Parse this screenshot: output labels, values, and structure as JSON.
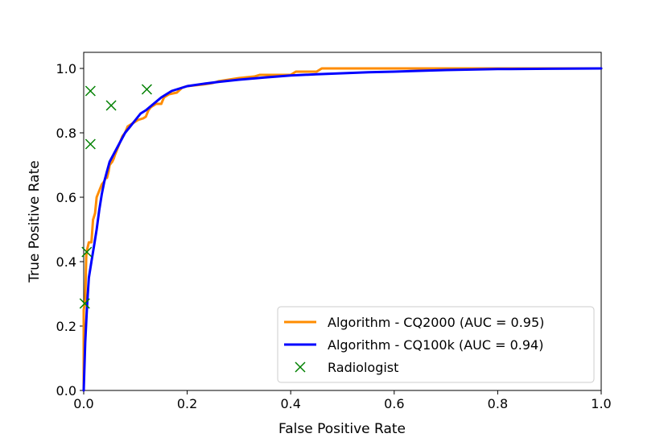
{
  "chart_data": {
    "type": "line",
    "title": "",
    "xlabel": "False Positive Rate",
    "ylabel": "True Positive Rate",
    "xlim": [
      0.0,
      1.0
    ],
    "ylim": [
      0.0,
      1.05
    ],
    "xticks": [
      "0.0",
      "0.2",
      "0.4",
      "0.6",
      "0.8",
      "1.0"
    ],
    "yticks": [
      "0.0",
      "0.2",
      "0.4",
      "0.6",
      "0.8",
      "1.0"
    ],
    "grid": false,
    "legend_position": "lower-right",
    "series": [
      {
        "name": "Algorithm - CQ2000 (AUC = 0.95)",
        "kind": "line",
        "color": "#ff8c00",
        "points": [
          [
            0.0,
            0.0
          ],
          [
            0.0,
            0.25
          ],
          [
            0.003,
            0.28
          ],
          [
            0.005,
            0.42
          ],
          [
            0.007,
            0.44
          ],
          [
            0.01,
            0.46
          ],
          [
            0.015,
            0.46
          ],
          [
            0.018,
            0.53
          ],
          [
            0.022,
            0.55
          ],
          [
            0.025,
            0.6
          ],
          [
            0.03,
            0.62
          ],
          [
            0.035,
            0.64
          ],
          [
            0.04,
            0.65
          ],
          [
            0.042,
            0.66
          ],
          [
            0.045,
            0.66
          ],
          [
            0.048,
            0.68
          ],
          [
            0.05,
            0.7
          ],
          [
            0.055,
            0.71
          ],
          [
            0.058,
            0.72
          ],
          [
            0.06,
            0.73
          ],
          [
            0.065,
            0.75
          ],
          [
            0.07,
            0.77
          ],
          [
            0.075,
            0.79
          ],
          [
            0.08,
            0.8
          ],
          [
            0.085,
            0.82
          ],
          [
            0.095,
            0.83
          ],
          [
            0.105,
            0.84
          ],
          [
            0.115,
            0.845
          ],
          [
            0.12,
            0.85
          ],
          [
            0.125,
            0.87
          ],
          [
            0.13,
            0.88
          ],
          [
            0.14,
            0.89
          ],
          [
            0.15,
            0.89
          ],
          [
            0.155,
            0.91
          ],
          [
            0.165,
            0.92
          ],
          [
            0.18,
            0.925
          ],
          [
            0.19,
            0.94
          ],
          [
            0.2,
            0.945
          ],
          [
            0.23,
            0.95
          ],
          [
            0.25,
            0.955
          ],
          [
            0.26,
            0.96
          ],
          [
            0.3,
            0.97
          ],
          [
            0.33,
            0.975
          ],
          [
            0.34,
            0.98
          ],
          [
            0.4,
            0.98
          ],
          [
            0.41,
            0.99
          ],
          [
            0.45,
            0.99
          ],
          [
            0.46,
            1.0
          ],
          [
            0.6,
            1.0
          ],
          [
            0.8,
            1.0
          ],
          [
            1.0,
            1.0
          ]
        ]
      },
      {
        "name": "Algorithm - CQ100k (AUC = 0.94)",
        "kind": "line",
        "color": "#0000ff",
        "points": [
          [
            0.0,
            0.0
          ],
          [
            0.003,
            0.15
          ],
          [
            0.006,
            0.25
          ],
          [
            0.008,
            0.3
          ],
          [
            0.01,
            0.35
          ],
          [
            0.015,
            0.4
          ],
          [
            0.02,
            0.45
          ],
          [
            0.025,
            0.5
          ],
          [
            0.03,
            0.56
          ],
          [
            0.035,
            0.61
          ],
          [
            0.04,
            0.65
          ],
          [
            0.045,
            0.68
          ],
          [
            0.05,
            0.71
          ],
          [
            0.06,
            0.74
          ],
          [
            0.07,
            0.77
          ],
          [
            0.08,
            0.8
          ],
          [
            0.09,
            0.82
          ],
          [
            0.1,
            0.84
          ],
          [
            0.11,
            0.86
          ],
          [
            0.12,
            0.87
          ],
          [
            0.135,
            0.89
          ],
          [
            0.15,
            0.91
          ],
          [
            0.17,
            0.93
          ],
          [
            0.2,
            0.945
          ],
          [
            0.23,
            0.952
          ],
          [
            0.26,
            0.958
          ],
          [
            0.3,
            0.965
          ],
          [
            0.35,
            0.972
          ],
          [
            0.4,
            0.978
          ],
          [
            0.45,
            0.982
          ],
          [
            0.5,
            0.985
          ],
          [
            0.55,
            0.988
          ],
          [
            0.6,
            0.99
          ],
          [
            0.7,
            0.995
          ],
          [
            0.8,
            0.998
          ],
          [
            0.9,
            0.999
          ],
          [
            1.0,
            1.0
          ]
        ]
      }
    ],
    "scatter": {
      "name": "Radiologist",
      "marker": "x",
      "color": "#008000",
      "points": [
        [
          0.002,
          0.27
        ],
        [
          0.006,
          0.43
        ],
        [
          0.013,
          0.765
        ],
        [
          0.013,
          0.93
        ],
        [
          0.053,
          0.885
        ],
        [
          0.122,
          0.935
        ]
      ]
    }
  }
}
